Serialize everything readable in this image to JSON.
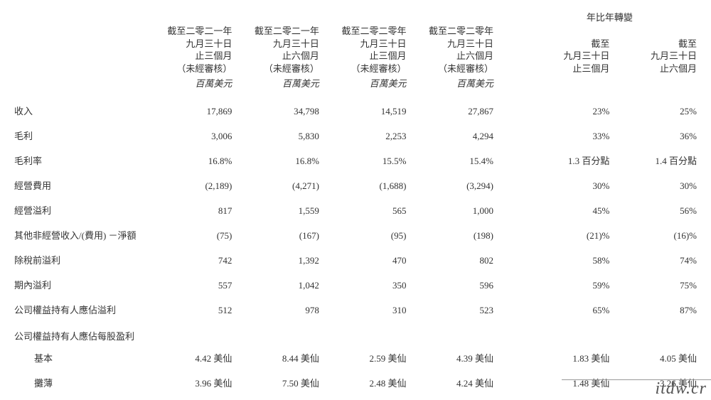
{
  "header": {
    "yoy_group": "年比年轉變",
    "cols": [
      {
        "l1": "截至二零二一年",
        "l2": "九月三十日",
        "l3": "止三個月",
        "l4": "（未經審核）",
        "unit": "百萬美元"
      },
      {
        "l1": "截至二零二一年",
        "l2": "九月三十日",
        "l3": "止六個月",
        "l4": "（未經審核）",
        "unit": "百萬美元"
      },
      {
        "l1": "截至二零二零年",
        "l2": "九月三十日",
        "l3": "止三個月",
        "l4": "（未經審核）",
        "unit": "百萬美元"
      },
      {
        "l1": "截至二零二零年",
        "l2": "九月三十日",
        "l3": "止六個月",
        "l4": "（未經審核）",
        "unit": "百萬美元"
      },
      {
        "l1": "",
        "l2": "截至",
        "l3": "九月三十日",
        "l4": "止三個月",
        "unit": ""
      },
      {
        "l1": "",
        "l2": "截至",
        "l3": "九月三十日",
        "l4": "止六個月",
        "unit": ""
      }
    ]
  },
  "rows": [
    {
      "label": "收入",
      "v": [
        "17,869",
        "34,798",
        "14,519",
        "27,867",
        "23%",
        "25%"
      ]
    },
    {
      "label": "毛利",
      "v": [
        "3,006",
        "5,830",
        "2,253",
        "4,294",
        "33%",
        "36%"
      ]
    },
    {
      "label": "毛利率",
      "v": [
        "16.8%",
        "16.8%",
        "15.5%",
        "15.4%",
        "1.3 百分點",
        "1.4 百分點"
      ]
    },
    {
      "label": "經營費用",
      "v": [
        "(2,189)",
        "(4,271)",
        "(1,688)",
        "(3,294)",
        "30%",
        "30%"
      ]
    },
    {
      "label": "經營溢利",
      "v": [
        "817",
        "1,559",
        "565",
        "1,000",
        "45%",
        "56%"
      ]
    },
    {
      "label": "其他非經營收入/(費用) －淨額",
      "v": [
        "(75)",
        "(167)",
        "(95)",
        "(198)",
        "(21)%",
        "(16)%"
      ]
    },
    {
      "label": "除稅前溢利",
      "v": [
        "742",
        "1,392",
        "470",
        "802",
        "58%",
        "74%"
      ]
    },
    {
      "label": "期內溢利",
      "v": [
        "557",
        "1,042",
        "350",
        "596",
        "59%",
        "75%"
      ]
    },
    {
      "label": "公司權益持有人應佔溢利",
      "v": [
        "512",
        "978",
        "310",
        "523",
        "65%",
        "87%"
      ]
    }
  ],
  "eps_header": "公司權益持有人應佔每股盈利",
  "eps_rows": [
    {
      "label": "基本",
      "v": [
        "4.42 美仙",
        "8.44 美仙",
        "2.59 美仙",
        "4.39 美仙",
        "1.83 美仙",
        "4.05 美仙"
      ]
    },
    {
      "label": "攤薄",
      "v": [
        "3.96 美仙",
        "7.50 美仙",
        "2.48 美仙",
        "4.24 美仙",
        "1.48 美仙",
        "3.26 美仙"
      ]
    }
  ],
  "watermark": "itdw.cr",
  "style": {
    "text_color": "#333333",
    "background_color": "#ffffff",
    "font_size_pt": 10,
    "header_italic_unit": true
  }
}
